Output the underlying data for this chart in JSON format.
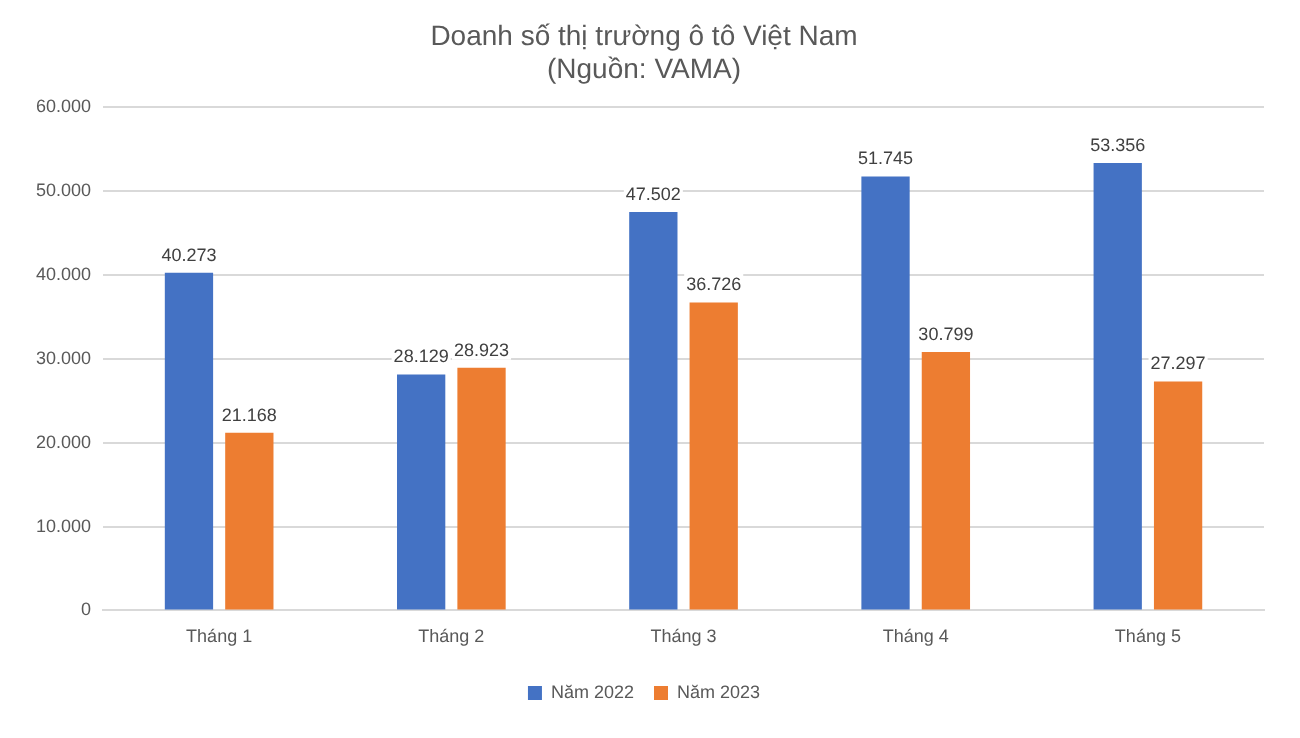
{
  "chart_data": {
    "type": "bar",
    "title": "Doanh số thị trường ô tô Việt Nam",
    "subtitle": "(Nguồn: VAMA)",
    "categories": [
      "Tháng 1",
      "Tháng 2",
      "Tháng 3",
      "Tháng 4",
      "Tháng 5"
    ],
    "series": [
      {
        "name": "Năm 2022",
        "color": "#4472c4",
        "values": [
          40273,
          28129,
          47502,
          51745,
          53356
        ],
        "value_labels": [
          "40.273",
          "28.129",
          "47.502",
          "51.745",
          "53.356"
        ]
      },
      {
        "name": "Năm 2023",
        "color": "#ed7d31",
        "values": [
          21168,
          28923,
          36726,
          30799,
          27297
        ],
        "value_labels": [
          "21.168",
          "28.923",
          "36.726",
          "30.799",
          "27.297"
        ]
      }
    ],
    "ylim": [
      0,
      60000
    ],
    "yticks": [
      {
        "value": 0,
        "label": "0"
      },
      {
        "value": 10000,
        "label": "10.000"
      },
      {
        "value": 20000,
        "label": "20.000"
      },
      {
        "value": 30000,
        "label": "30.000"
      },
      {
        "value": 40000,
        "label": "40.000"
      },
      {
        "value": 50000,
        "label": "50.000"
      },
      {
        "value": 60000,
        "label": "60.000"
      }
    ],
    "grid": "y",
    "legend": "bottom"
  }
}
